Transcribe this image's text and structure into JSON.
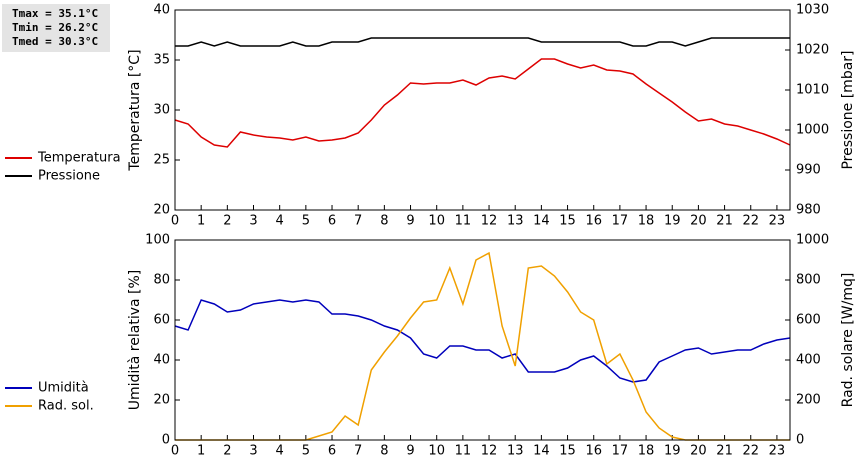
{
  "chart_data": [
    {
      "type": "line",
      "annotations": [
        "Tmax = 35.1°C",
        "Tmin = 26.2°C",
        "Tmed = 30.3°C"
      ],
      "y_label": "Temperatura [°C]",
      "y2_label": "Pressione [mbar]",
      "x": [
        0,
        0.5,
        1,
        1.5,
        2,
        2.5,
        3,
        3.5,
        4,
        4.5,
        5,
        5.5,
        6,
        6.5,
        7,
        7.5,
        8,
        8.5,
        9,
        9.5,
        10,
        10.5,
        11,
        11.5,
        12,
        12.5,
        13,
        13.5,
        14,
        14.5,
        15,
        15.5,
        16,
        16.5,
        17,
        17.5,
        18,
        18.5,
        19,
        19.5,
        20,
        20.5,
        21,
        21.5,
        22,
        22.5,
        23,
        23.5
      ],
      "xlim": [
        0,
        23.5
      ],
      "xticks": [
        0,
        1,
        2,
        3,
        4,
        5,
        6,
        7,
        8,
        9,
        10,
        11,
        12,
        13,
        14,
        15,
        16,
        17,
        18,
        19,
        20,
        21,
        22,
        23
      ],
      "ylim": [
        20,
        40
      ],
      "yticks": [
        20,
        25,
        30,
        35,
        40
      ],
      "y2lim": [
        980,
        1030
      ],
      "y2ticks": [
        980,
        990,
        1000,
        1010,
        1020,
        1030
      ],
      "series": [
        {
          "name": "Temperatura",
          "color": "#dd0000",
          "values": [
            29.0,
            28.6,
            27.3,
            26.5,
            26.3,
            27.8,
            27.5,
            27.3,
            27.2,
            27.0,
            27.3,
            26.9,
            27.0,
            27.2,
            27.7,
            29.0,
            30.5,
            31.5,
            32.7,
            32.6,
            32.7,
            32.7,
            33.0,
            32.5,
            33.2,
            33.4,
            33.1,
            34.1,
            35.1,
            35.1,
            34.6,
            34.2,
            34.5,
            34.0,
            33.9,
            33.6,
            32.6,
            31.7,
            30.8,
            29.8,
            28.9,
            29.1,
            28.6,
            28.4,
            28.0,
            27.6,
            27.1,
            26.5
          ]
        },
        {
          "name": "Pressione",
          "color": "#000000",
          "axis": "y2",
          "values": [
            1021,
            1021,
            1022,
            1021,
            1022,
            1021,
            1021,
            1021,
            1021,
            1022,
            1021,
            1021,
            1022,
            1022,
            1022,
            1023,
            1023,
            1023,
            1023,
            1023,
            1023,
            1023,
            1023,
            1023,
            1023,
            1023,
            1023,
            1023,
            1022,
            1022,
            1022,
            1022,
            1022,
            1022,
            1022,
            1021,
            1021,
            1022,
            1022,
            1021,
            1022,
            1023,
            1023,
            1023,
            1023,
            1023,
            1023,
            1023
          ]
        }
      ]
    },
    {
      "type": "line",
      "y_label": "Umidità relativa [%]",
      "y2_label": "Rad. solare [W/mq]",
      "x": [
        0,
        0.5,
        1,
        1.5,
        2,
        2.5,
        3,
        3.5,
        4,
        4.5,
        5,
        5.5,
        6,
        6.5,
        7,
        7.5,
        8,
        8.5,
        9,
        9.5,
        10,
        10.5,
        11,
        11.5,
        12,
        12.5,
        13,
        13.5,
        14,
        14.5,
        15,
        15.5,
        16,
        16.5,
        17,
        17.5,
        18,
        18.5,
        19,
        19.5,
        20,
        20.5,
        21,
        21.5,
        22,
        22.5,
        23,
        23.5
      ],
      "xlim": [
        0,
        23.5
      ],
      "xticks": [
        0,
        1,
        2,
        3,
        4,
        5,
        6,
        7,
        8,
        9,
        10,
        11,
        12,
        13,
        14,
        15,
        16,
        17,
        18,
        19,
        20,
        21,
        22,
        23
      ],
      "ylim": [
        0,
        100
      ],
      "yticks": [
        0,
        20,
        40,
        60,
        80,
        100
      ],
      "y2lim": [
        0,
        1000
      ],
      "y2ticks": [
        0,
        200,
        400,
        600,
        800,
        1000
      ],
      "series": [
        {
          "name": "Umidità",
          "color": "#0000bb",
          "values": [
            57,
            55,
            70,
            68,
            64,
            65,
            68,
            69,
            70,
            69,
            70,
            69,
            63,
            63,
            62,
            60,
            57,
            55,
            51,
            43,
            41,
            47,
            47,
            45,
            45,
            41,
            43,
            34,
            34,
            34,
            36,
            40,
            42,
            37,
            31,
            29,
            30,
            39,
            42,
            45,
            46,
            43,
            44,
            45,
            45,
            48,
            50,
            51
          ]
        },
        {
          "name": "Rad. sol.",
          "color": "#f0a000",
          "axis": "y2",
          "values": [
            0,
            0,
            0,
            0,
            0,
            0,
            0,
            0,
            0,
            0,
            0,
            20,
            40,
            120,
            75,
            350,
            440,
            520,
            610,
            690,
            700,
            860,
            680,
            900,
            935,
            570,
            370,
            860,
            870,
            820,
            740,
            640,
            600,
            380,
            430,
            300,
            140,
            60,
            15,
            0,
            0,
            0,
            0,
            0,
            0,
            0,
            0,
            0
          ]
        }
      ]
    }
  ]
}
